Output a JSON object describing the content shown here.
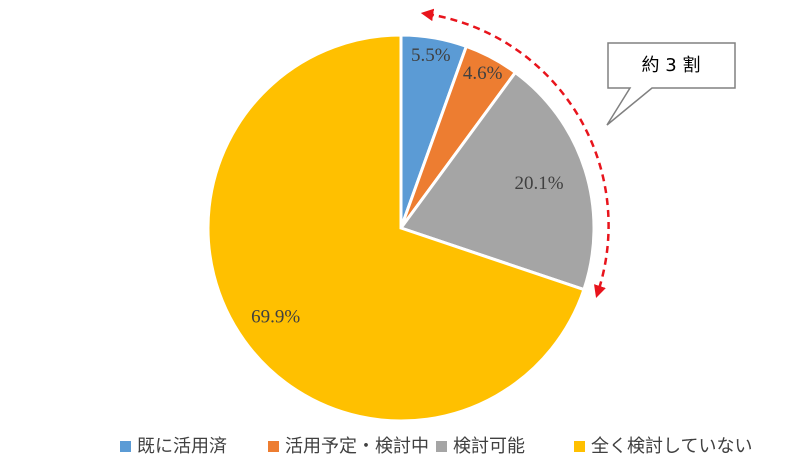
{
  "chart_data": {
    "type": "pie",
    "categories": [
      "既に活用済",
      "活用予定・検討中",
      "検討可能",
      "全く検討していない"
    ],
    "values": [
      5.5,
      4.6,
      20.1,
      69.9
    ],
    "value_labels": [
      "5.5%",
      "4.6%",
      "20.1%",
      "69.9%"
    ],
    "colors": [
      "#5b9bd5",
      "#ed7d31",
      "#a5a5a5",
      "#ffc000"
    ],
    "annotation": "約 3 割",
    "legend": "bottom"
  }
}
